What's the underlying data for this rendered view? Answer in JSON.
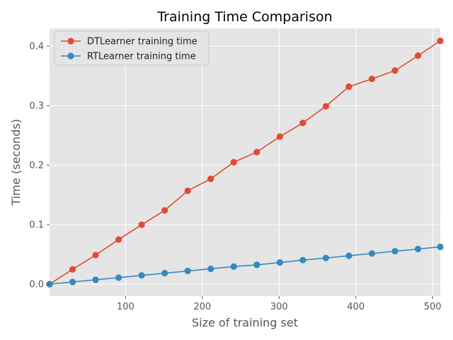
{
  "chart_data": {
    "type": "line",
    "title": "Training Time Comparison",
    "xlabel": "Size of training set",
    "ylabel": "Time (seconds)",
    "xlim": [
      1,
      510
    ],
    "ylim": [
      -0.02,
      0.43
    ],
    "xticks": [
      100,
      200,
      300,
      400,
      500
    ],
    "yticks": [
      0.0,
      0.1,
      0.2,
      0.3,
      0.4
    ],
    "grid": true,
    "legend_position": "upper-left",
    "x": [
      1,
      31,
      61,
      91,
      121,
      151,
      181,
      211,
      241,
      271,
      301,
      331,
      361,
      391,
      421,
      451,
      481,
      510
    ],
    "series": [
      {
        "name": "DTLearner training time",
        "color": "#e24a33",
        "values": [
          0.0,
          0.025,
          0.049,
          0.075,
          0.1,
          0.124,
          0.157,
          0.177,
          0.205,
          0.222,
          0.248,
          0.271,
          0.299,
          0.332,
          0.345,
          0.359,
          0.384,
          0.409
        ]
      },
      {
        "name": "RTLearner training time",
        "color": "#348abd",
        "values": [
          0.0,
          0.0037,
          0.0074,
          0.011,
          0.0148,
          0.0185,
          0.0222,
          0.0259,
          0.0296,
          0.0325,
          0.0365,
          0.0405,
          0.044,
          0.0478,
          0.0516,
          0.0554,
          0.059,
          0.0628
        ]
      }
    ]
  }
}
